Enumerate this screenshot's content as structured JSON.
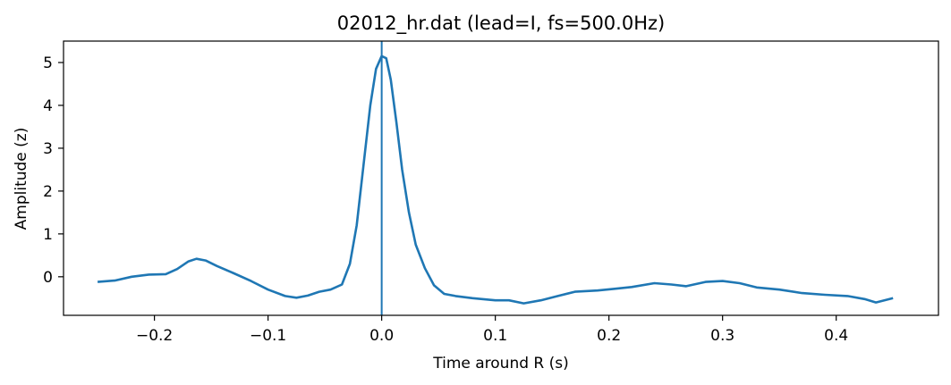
{
  "chart_data": {
    "type": "line",
    "title": "02012_hr.dat (lead=I, fs=500.0Hz)",
    "xlabel": "Time around R (s)",
    "ylabel": "Amplitude (z)",
    "xlim": [
      -0.28,
      0.49
    ],
    "ylim": [
      -0.9,
      5.5
    ],
    "x_ticks": [
      -0.2,
      -0.1,
      0.0,
      0.1,
      0.2,
      0.3,
      0.4
    ],
    "x_tick_labels": [
      "−0.2",
      "−0.1",
      "0.0",
      "0.1",
      "0.2",
      "0.3",
      "0.4"
    ],
    "y_ticks": [
      0,
      1,
      2,
      3,
      4,
      5
    ],
    "y_tick_labels": [
      "0",
      "1",
      "2",
      "3",
      "4",
      "5"
    ],
    "grid": false,
    "line_color": "#1f77b4",
    "vline_x": 0.0,
    "series": [
      {
        "x": [
          -0.25,
          -0.235,
          -0.22,
          -0.205,
          -0.19,
          -0.18,
          -0.17,
          -0.163,
          -0.155,
          -0.145,
          -0.13,
          -0.115,
          -0.1,
          -0.085,
          -0.075,
          -0.065,
          -0.055,
          -0.045,
          -0.035,
          -0.028,
          -0.022,
          -0.016,
          -0.01,
          -0.005,
          0.0,
          0.004,
          0.008,
          0.013,
          0.018,
          0.024,
          0.03,
          0.038,
          0.046,
          0.055,
          0.065,
          0.08,
          0.1,
          0.112,
          0.125,
          0.14,
          0.155,
          0.17,
          0.19,
          0.205,
          0.22,
          0.24,
          0.255,
          0.268,
          0.285,
          0.3,
          0.315,
          0.33,
          0.35,
          0.37,
          0.39,
          0.41,
          0.425,
          0.435,
          0.45
        ],
        "y": [
          -0.12,
          -0.09,
          0.0,
          0.05,
          0.06,
          0.18,
          0.36,
          0.42,
          0.38,
          0.25,
          0.08,
          -0.1,
          -0.3,
          -0.45,
          -0.49,
          -0.44,
          -0.35,
          -0.3,
          -0.18,
          0.3,
          1.2,
          2.6,
          4.0,
          4.85,
          5.15,
          5.1,
          4.6,
          3.6,
          2.5,
          1.5,
          0.75,
          0.2,
          -0.2,
          -0.4,
          -0.45,
          -0.5,
          -0.55,
          -0.55,
          -0.62,
          -0.55,
          -0.45,
          -0.35,
          -0.32,
          -0.28,
          -0.24,
          -0.15,
          -0.18,
          -0.22,
          -0.12,
          -0.1,
          -0.15,
          -0.25,
          -0.3,
          -0.38,
          -0.42,
          -0.45,
          -0.52,
          -0.6,
          -0.5
        ]
      }
    ]
  }
}
